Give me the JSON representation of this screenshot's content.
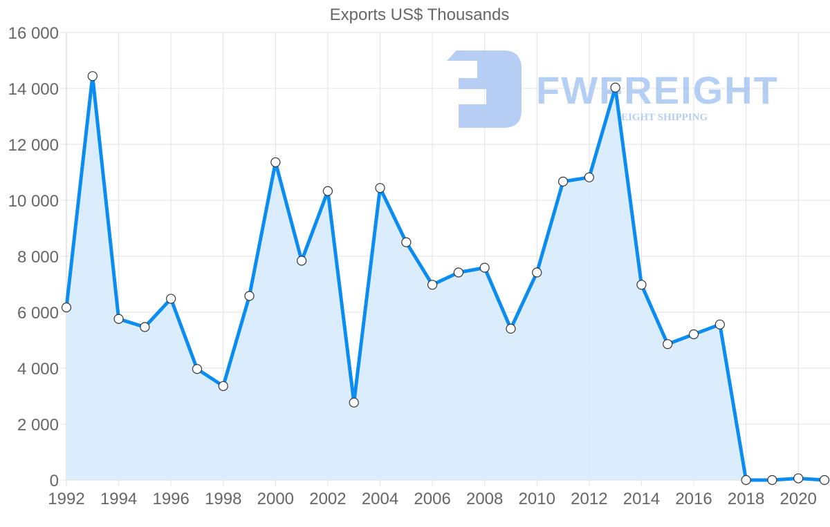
{
  "chart_data": {
    "type": "line",
    "title": "Exports US$ Thousands",
    "xlabel": "",
    "ylabel": "",
    "x": [
      1992,
      1993,
      1994,
      1995,
      1996,
      1997,
      1998,
      1999,
      2000,
      2001,
      2002,
      2003,
      2004,
      2005,
      2006,
      2007,
      2008,
      2009,
      2010,
      2011,
      2012,
      2013,
      2014,
      2015,
      2016,
      2017,
      2018,
      2019,
      2020,
      2021
    ],
    "series": [
      {
        "name": "Exports US$ Thousands",
        "values": [
          6170,
          14440,
          5760,
          5470,
          6480,
          3970,
          3360,
          6580,
          11360,
          7840,
          10330,
          2770,
          10440,
          8500,
          6980,
          7420,
          7590,
          5410,
          7420,
          10670,
          10820,
          14030,
          6980,
          4860,
          5210,
          5560,
          0,
          0,
          60,
          0
        ]
      }
    ],
    "ylim": [
      0,
      16000
    ],
    "xlim": [
      1992,
      2021
    ],
    "y_ticks": [
      0,
      2000,
      4000,
      6000,
      8000,
      10000,
      12000,
      14000,
      16000
    ],
    "y_tick_labels": [
      "0",
      "2 000",
      "4 000",
      "6 000",
      "8 000",
      "10 000",
      "12 000",
      "14 000",
      "16 000"
    ],
    "x_ticks": [
      1992,
      1994,
      1996,
      1998,
      2000,
      2002,
      2004,
      2006,
      2008,
      2010,
      2012,
      2014,
      2016,
      2018,
      2020
    ],
    "x_tick_labels": [
      "1992",
      "1994",
      "1996",
      "1998",
      "2000",
      "2002",
      "2004",
      "2006",
      "2008",
      "2010",
      "2012",
      "2014",
      "2016",
      "2018",
      "2020"
    ],
    "grid": true,
    "legend": null,
    "fill": true,
    "colors": {
      "line": "#0a8cf0",
      "fill": "#d9ecfc",
      "point_fill": "#ffffff",
      "point_stroke": "#333333",
      "grid": "#e2e2e2",
      "text": "#666666"
    }
  },
  "watermark": {
    "brand": "FWFREIGHT",
    "tagline": "FREIGHT SHIPPING",
    "color": "#a9c6f2"
  }
}
